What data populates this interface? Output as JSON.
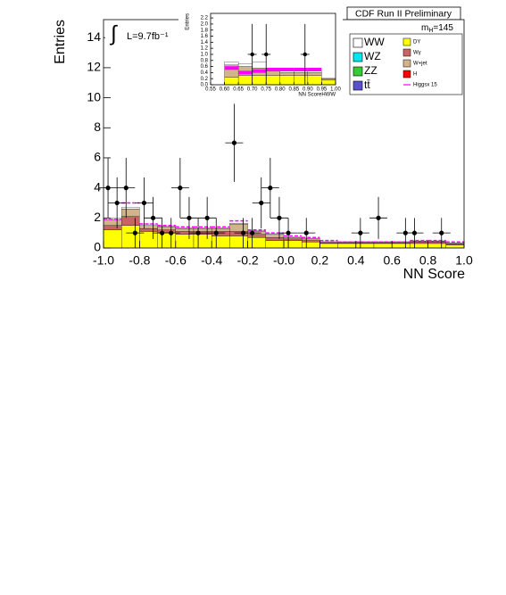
{
  "chart_data": [
    {
      "type": "stacked-histogram",
      "title": "CDF Run II Preliminary",
      "integral_symbol": "∫",
      "luminosity": "L=9.7fb⁻¹",
      "mass_label": {
        "symbol": "m",
        "subscript": "H",
        "value": "=145"
      },
      "xlabel": "NN Score",
      "ylabel": "Entries",
      "xlim": [
        -1,
        1
      ],
      "ylim": [
        0,
        15.2
      ],
      "xticks": [
        {
          "value": -1,
          "label": "-1.0"
        },
        -0.8,
        -0.6,
        -0.4,
        -0.2,
        {
          "value": 0,
          "label": "-0.0"
        },
        0.2,
        0.4,
        0.6,
        0.8,
        {
          "value": 1,
          "label": "1.0"
        }
      ],
      "yticks": [
        0,
        2,
        4,
        6,
        8,
        10,
        12,
        14
      ],
      "bins": [
        -1,
        -0.9,
        -0.8,
        -0.7,
        -0.6,
        -0.5,
        -0.4,
        -0.3,
        -0.2,
        -0.1,
        0,
        0.1,
        0.2,
        0.3,
        0.4,
        0.5,
        0.6,
        0.7,
        0.8,
        0.9,
        1
      ],
      "series": [
        {
          "name": "WW",
          "color": "#ffffff",
          "values": [
            0.1,
            0.1,
            0.1,
            0.05,
            0.05,
            0.05,
            0.05,
            0.05,
            0.05,
            0.05,
            0.05,
            0.05,
            0.02,
            0.02,
            0.02,
            0.02,
            0.02,
            0.02,
            0.02,
            0.02
          ]
        },
        {
          "name": "WZ",
          "color": "#00e5ee",
          "values": [
            0,
            0,
            0,
            0,
            0,
            0,
            0,
            0,
            0,
            0,
            0,
            0,
            0,
            0,
            0,
            0,
            0,
            0,
            0,
            0
          ]
        },
        {
          "name": "ZZ",
          "color": "#33cc33",
          "values": [
            0,
            0,
            0,
            0,
            0,
            0,
            0,
            0,
            0,
            0,
            0,
            0,
            0,
            0,
            0,
            0,
            0,
            0,
            0,
            0
          ]
        },
        {
          "name": "tt̄",
          "color": "#5a4fcf",
          "values": [
            0,
            0,
            0,
            0,
            0,
            0,
            0,
            0,
            0,
            0,
            0,
            0,
            0,
            0,
            0,
            0,
            0,
            0,
            0,
            0
          ]
        },
        {
          "name": "DY",
          "color": "#ffff00",
          "values": [
            1.2,
            1.5,
            1.1,
            1.0,
            0.9,
            0.9,
            0.8,
            0.8,
            0.7,
            0.5,
            0.5,
            0.4,
            0.3,
            0.3,
            0.3,
            0.3,
            0.3,
            0.3,
            0.3,
            0.2
          ]
        },
        {
          "name": "Wγ",
          "color": "#c86464",
          "values": [
            0.3,
            0.6,
            0.2,
            0.2,
            0.2,
            0.2,
            0.3,
            0.3,
            0.2,
            0.2,
            0.1,
            0.1,
            0.05,
            0.05,
            0.05,
            0.05,
            0.05,
            0.1,
            0.1,
            0.05
          ]
        },
        {
          "name": "W+jet",
          "color": "#d2b48c",
          "values": [
            0.4,
            0.5,
            0.2,
            0.2,
            0.2,
            0.2,
            0.2,
            0.5,
            0.2,
            0.2,
            0.1,
            0.1,
            0.05,
            0.05,
            0.05,
            0.05,
            0.05,
            0.05,
            0.05,
            0.05
          ]
        },
        {
          "name": "H",
          "color": "#ff0000",
          "values": [
            0,
            0,
            0,
            0,
            0,
            0,
            0,
            0,
            0,
            0,
            0,
            0,
            0,
            0,
            0,
            0,
            0,
            0,
            0,
            0
          ]
        }
      ],
      "signal": {
        "name": "Higgsx 15",
        "color": "#ff00ff",
        "values": [
          1.9,
          3.0,
          1.6,
          1.5,
          1.4,
          1.4,
          1.4,
          1.8,
          1.2,
          1.0,
          0.8,
          0.7,
          0.5,
          0.4,
          0.4,
          0.4,
          0.4,
          0.5,
          0.5,
          0.4
        ]
      },
      "data_points": {
        "x": [
          -0.975,
          -0.925,
          -0.875,
          -0.825,
          -0.775,
          -0.725,
          -0.675,
          -0.625,
          -0.575,
          -0.525,
          -0.475,
          -0.425,
          -0.375,
          -0.275,
          -0.225,
          -0.175,
          -0.125,
          -0.075,
          -0.025,
          0.025,
          0.125,
          0.425,
          0.525,
          0.675,
          0.725,
          0.875
        ],
        "y": [
          4,
          3,
          4,
          1,
          3,
          2,
          1,
          1,
          4,
          2,
          1,
          2,
          1,
          7,
          1,
          1,
          3,
          4,
          2,
          1,
          1,
          1,
          2,
          1,
          1,
          1
        ],
        "yerr": [
          2,
          1.7,
          2,
          1,
          1.7,
          1.4,
          1,
          1,
          2,
          1.4,
          1,
          1.4,
          1,
          2.6,
          1,
          1,
          1.7,
          2,
          1.4,
          1,
          1,
          1,
          1.4,
          1,
          1,
          1
        ]
      }
    },
    {
      "type": "stacked-histogram",
      "xlabel": "NN ScoreHWW",
      "ylabel": "Entries",
      "xlim": [
        0.55,
        1.0
      ],
      "ylim": [
        0,
        2.35
      ],
      "xticks": [
        0.55,
        {
          "value": 0.6,
          "label": "0.60"
        },
        0.65,
        {
          "value": 0.7,
          "label": "0.70"
        },
        0.75,
        {
          "value": 0.8,
          "label": "0.80"
        },
        0.85,
        {
          "value": 0.9,
          "label": "0.90"
        },
        0.95,
        {
          "value": 1,
          "label": "1.00"
        }
      ],
      "yticks": [
        {
          "value": 0,
          "label": "0.0"
        },
        0.2,
        0.4,
        0.6,
        0.8,
        {
          "value": 1,
          "label": "1.0"
        },
        1.2,
        1.4,
        1.6,
        1.8,
        {
          "value": 2,
          "label": "2.0"
        },
        2.2
      ],
      "bins": [
        0.55,
        0.6,
        0.65,
        0.7,
        0.75,
        0.8,
        0.85,
        0.9,
        0.95,
        1.0
      ],
      "series": [
        {
          "color": "#ffff00",
          "values": [
            0,
            0.25,
            0.3,
            0.3,
            0.3,
            0.3,
            0.3,
            0.3,
            0.15
          ]
        },
        {
          "color": "#d2b48c",
          "values": [
            0,
            0.4,
            0.3,
            0.25,
            0.15,
            0.1,
            0.1,
            0.1,
            0.05
          ]
        },
        {
          "color": "#ffffff",
          "values": [
            0,
            0.1,
            0.1,
            0.2,
            0.1,
            0.05,
            0.05,
            0.05,
            0.02
          ]
        }
      ],
      "signal": {
        "color": "#ff00ff",
        "values": [
          null,
          0.55,
          0.4,
          0.45,
          0.5,
          0.5,
          0.5,
          0.5,
          null
        ]
      },
      "data_points": {
        "x": [
          0.7,
          0.75,
          0.89
        ],
        "y": [
          1,
          1,
          1
        ],
        "yerr": [
          1,
          1,
          1
        ]
      }
    }
  ]
}
